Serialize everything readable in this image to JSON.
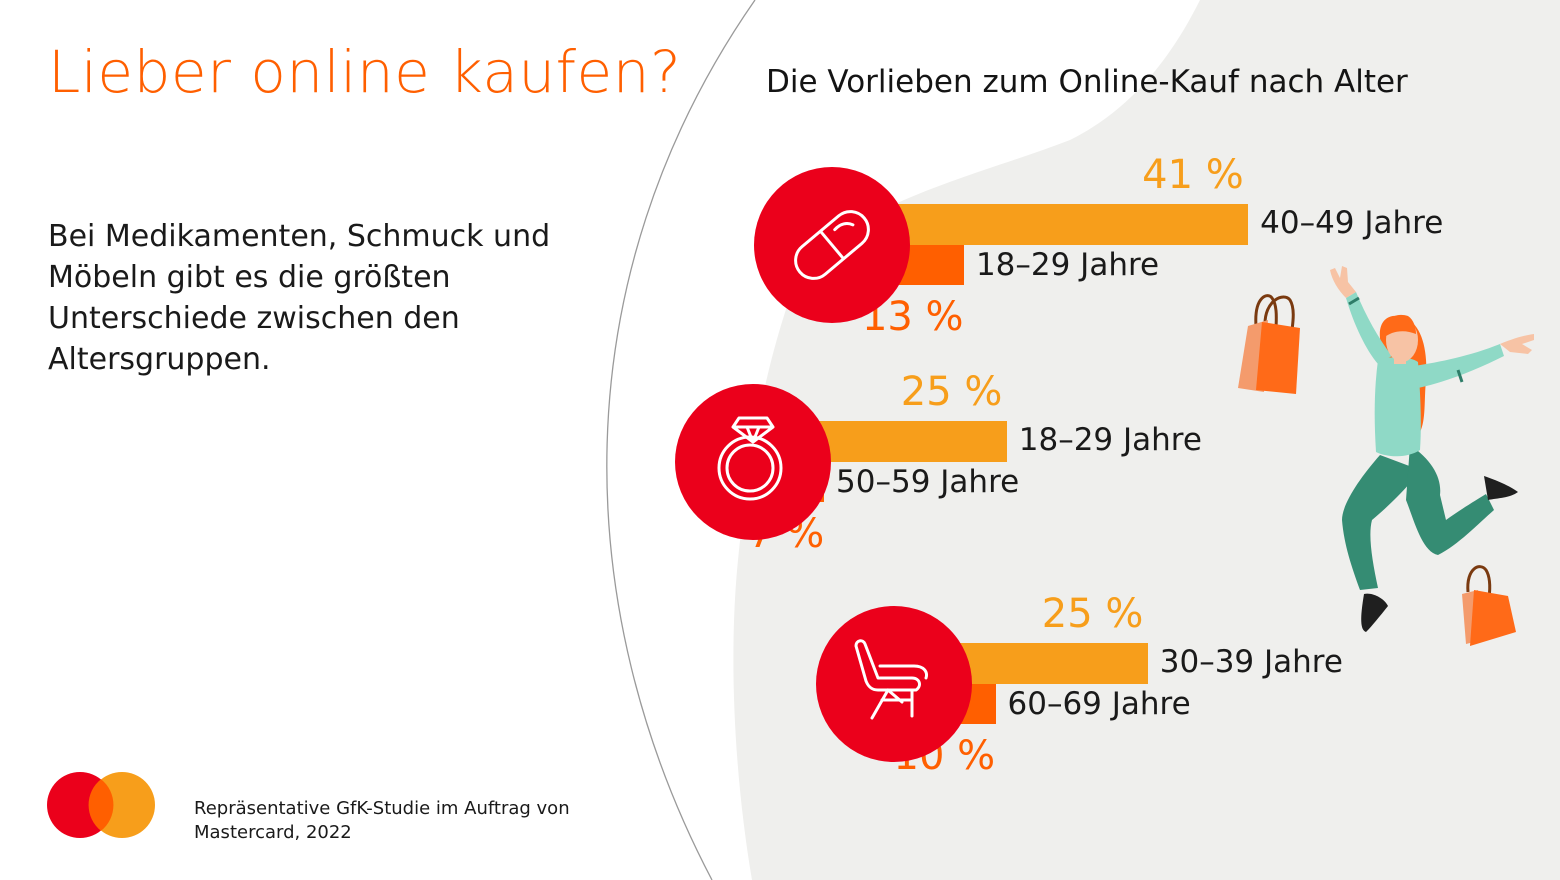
{
  "page": {
    "title": "Lieber online kaufen?",
    "lead": "Bei Medikamenten, Schmuck und Möbeln gibt es die größten Unterschiede zwischen den Altersgruppen.",
    "source": "Repräsentative GfK-Studie im Auftrag von Mastercard, 2022"
  },
  "colors": {
    "accent_orange": "#ff5f00",
    "accent_yellow": "#f79e1b",
    "accent_red": "#eb001b",
    "background_blob": "#efefed"
  },
  "chart_data": {
    "type": "bar",
    "title": "Die Vorlieben zum Online-Kauf nach Alter",
    "unit": "%",
    "groups": [
      {
        "icon": "pill-icon",
        "top": {
          "label": "40–49 Jahre",
          "value": 41,
          "value_label": "41 %"
        },
        "bottom": {
          "label": "18–29 Jahre",
          "value": 13,
          "value_label": "13 %"
        }
      },
      {
        "icon": "ring-icon",
        "top": {
          "label": "18–29 Jahre",
          "value": 25,
          "value_label": "25 %"
        },
        "bottom": {
          "label": "50–59 Jahre",
          "value": 7,
          "value_label": "7 %"
        }
      },
      {
        "icon": "chair-icon",
        "top": {
          "label": "30–39 Jahre",
          "value": 25,
          "value_label": "25 %"
        },
        "bottom": {
          "label": "60–69 Jahre",
          "value": 10,
          "value_label": "10 %"
        }
      }
    ]
  }
}
